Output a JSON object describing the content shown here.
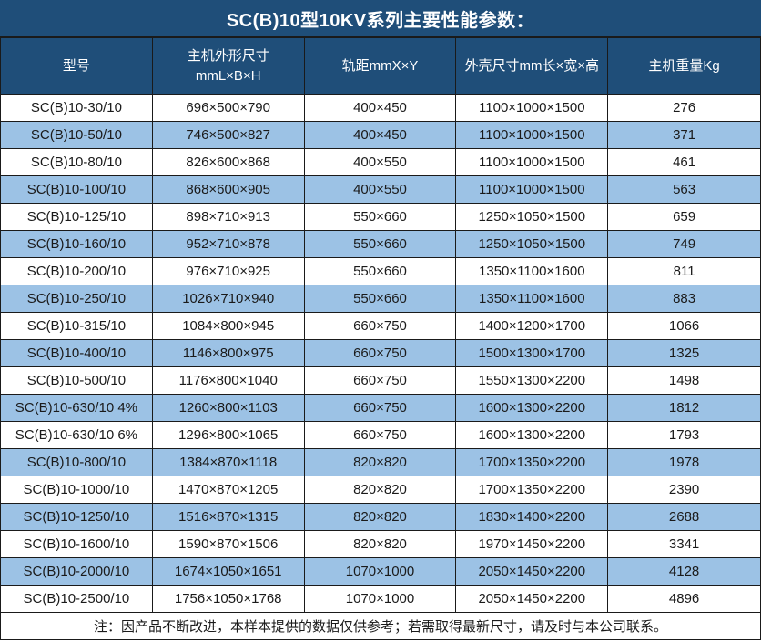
{
  "colors": {
    "header_bg": "#1F4E79",
    "header_text": "#FFFFFF",
    "alt_row_bg": "#9CC2E5",
    "body_text": "#1a1a1a",
    "border": "#1a1a1a"
  },
  "title": "SC(B)10型10KV系列主要性能参数：",
  "table": {
    "headers": [
      "型号",
      "主机外形尺寸\nmmL×B×H",
      "轨距mmX×Y",
      "外壳尺寸mm长×宽×高",
      "主机重量Kg"
    ],
    "rows": [
      [
        "SC(B)10-30/10",
        "696×500×790",
        "400×450",
        "1100×1000×1500",
        "276"
      ],
      [
        "SC(B)10-50/10",
        "746×500×827",
        "400×450",
        "1100×1000×1500",
        "371"
      ],
      [
        "SC(B)10-80/10",
        "826×600×868",
        "400×550",
        "1100×1000×1500",
        "461"
      ],
      [
        "SC(B)10-100/10",
        "868×600×905",
        "400×550",
        "1100×1000×1500",
        "563"
      ],
      [
        "SC(B)10-125/10",
        "898×710×913",
        "550×660",
        "1250×1050×1500",
        "659"
      ],
      [
        "SC(B)10-160/10",
        "952×710×878",
        "550×660",
        "1250×1050×1500",
        "749"
      ],
      [
        "SC(B)10-200/10",
        "976×710×925",
        "550×660",
        "1350×1100×1600",
        "811"
      ],
      [
        "SC(B)10-250/10",
        "1026×710×940",
        "550×660",
        "1350×1100×1600",
        "883"
      ],
      [
        "SC(B)10-315/10",
        "1084×800×945",
        "660×750",
        "1400×1200×1700",
        "1066"
      ],
      [
        "SC(B)10-400/10",
        "1146×800×975",
        "660×750",
        "1500×1300×1700",
        "1325"
      ],
      [
        "SC(B)10-500/10",
        "1176×800×1040",
        "660×750",
        "1550×1300×2200",
        "1498"
      ],
      [
        "SC(B)10-630/10 4%",
        "1260×800×1103",
        "660×750",
        "1600×1300×2200",
        "1812"
      ],
      [
        "SC(B)10-630/10 6%",
        "1296×800×1065",
        "660×750",
        "1600×1300×2200",
        "1793"
      ],
      [
        "SC(B)10-800/10",
        "1384×870×1118",
        "820×820",
        "1700×1350×2200",
        "1978"
      ],
      [
        "SC(B)10-1000/10",
        "1470×870×1205",
        "820×820",
        "1700×1350×2200",
        "2390"
      ],
      [
        "SC(B)10-1250/10",
        "1516×870×1315",
        "820×820",
        "1830×1400×2200",
        "2688"
      ],
      [
        "SC(B)10-1600/10",
        "1590×870×1506",
        "820×820",
        "1970×1450×2200",
        "3341"
      ],
      [
        "SC(B)10-2000/10",
        "1674×1050×1651",
        "1070×1000",
        "2050×1450×2200",
        "4128"
      ],
      [
        "SC(B)10-2500/10",
        "1756×1050×1768",
        "1070×1000",
        "2050×1450×2200",
        "4896"
      ]
    ]
  },
  "footer": {
    "note": "注：因产品不断改进，本样本提供的数据仅供参考；若需取得最新尺寸，请及时与本公司联系。"
  }
}
